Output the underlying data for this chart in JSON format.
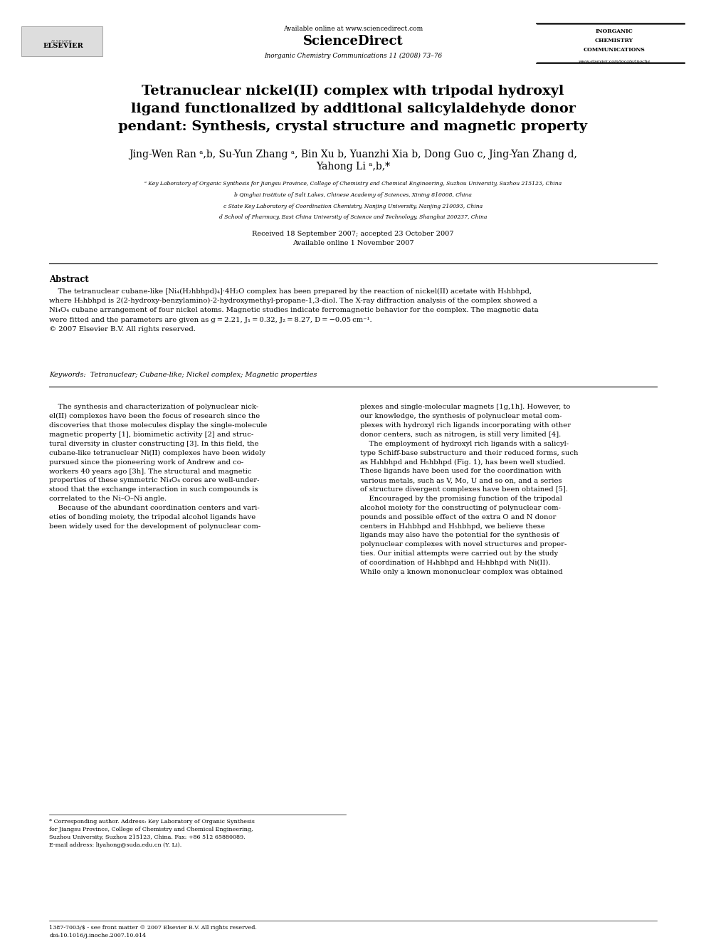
{
  "bg_color": "#ffffff",
  "page_width": 9.92,
  "page_height": 13.23,
  "header": {
    "available_online": "Available online at www.sciencedirect.com",
    "journal_name": "Inorganic Chemistry Communications 11 (2008) 73–76",
    "sciencedirect_text": "ScienceDirect",
    "journal_abbr_line1": "INORGANIC",
    "journal_abbr_line2": "CHEMISTRY",
    "journal_abbr_line3": "COMMUNICATIONS",
    "website": "www.elsevier.com/locate/inoche"
  },
  "title": "Tetranuclear nickel(II) complex with tripodal hydroxyl\nligand functionalized by additional salicylaldehyde donor\npendant: Synthesis, crystal structure and magnetic property",
  "authors": "Jing-Wen Ran ¹ᵇ, Su-Yun Zhang ¹, Bin Xu ᵇ, Yuanzhi Xia ᵇ, Dong Guo ᶜ, Jing-Yan Zhang ᵈ,\nYahong Li ¹ᵇ,*",
  "affiliations": [
    "ᵃ Key Laboratory of Organic Synthesis for Jiangsu Province, College of Chemistry and Chemical Engineering, Suzhou University, Suzhou 215123, China",
    "ᵇ Qinghai Institute of Salt Lakes, Chinese Academy of Sciences, Xining 810008, China",
    "ᶜ State Key Laboratory of Coordination Chemistry, Nanjing University, Nanjing 210093, China",
    "ᵈ School of Pharmacy, East China University of Science and Technology, Shanghai 200237, China"
  ],
  "received_dates": "Received 18 September 2007; accepted 23 October 2007\nAvailable online 1 November 2007",
  "abstract_title": "Abstract",
  "abstract_text": "The tetranuclear cubane-like [Ni₄(H₂hbhpd)₄]·4H₂O complex has been prepared by the reaction of nickel(II) acetate with H₅hbhpd,\nwhere H₅hbhpd is 2(2-hydroxy-benzylamino)-2-hydroxymethyl-propane-1,3-diol. The X-ray diffraction analysis of the complex showed a\nNi₄O₄ cubane arrangement of four nickel atoms. Magnetic studies indicate ferromagnetic behavior for the complex. The magnetic data\nwere fitted and the parameters are given as g = 2.21, J₁ = 0.32, J₂ = 8.27, D = −0.05 cm⁻¹.\n© 2007 Elsevier B.V. All rights reserved.",
  "keywords": "Keywords:  Tetranuclear; Cubane-like; Nickel complex; Magnetic properties",
  "body_col1": "The synthesis and characterization of polynuclear nick-\nel(II) complexes have been the focus of research since the\ndiscoveries that those molecules display the single-molecule\nmagnetic property [1], biomimetic activity [2] and struc-\ntural diversity in cluster constructing [3]. In this field, the\ncubane-like tetranuclear Ni(II) complexes have been widely\npursued since the pioneering work of Andrew and co-\nworkers 40 years ago [3h]. The structural and magnetic\nproperties of these symmetric Ni₄O₄ cores are well-under-\nstood that the exchange interaction in such compounds is\ncorrelated to the Ni–O–Ni angle.\n    Because of the abundant coordination centers and vari-\neties of bonding moiety, the tripodal alcohol ligands have\nbeen widely used for the development of polynuclear com-",
  "body_col2": "plexes and single-molecular magnets [1g,1h]. However, to\nour knowledge, the synthesis of polynuclear metal com-\nplexes with hydroxyl rich ligands incorporating with other\ndonor centers, such as nitrogen, is still very limited [4].\n    The employment of hydroxyl rich ligands with a salicyl-\ntype Schiff-base substructure and their reduced forms, such\nas H₄hbhpd and H₅hbhpd (Fig. 1), has been well studied.\nThese ligands have been used for the coordination with\nvarious metals, such as V, Mo, U and so on, and a series\nof structure divergent complexes have been obtained [5].\n    Encouraged by the promising function of the tripodal\nalcohol moiety for the constructing of polynuclear com-\npounds and possible effect of the extra O and N donor\ncenters in H₄hbhpd and H₅hbhpd, we believe these\nligands may also have the potential for the synthesis of\npolynuclear complexes with novel structures and proper-\nties. Our initial attempts were carried out by the study\nof coordination of H₄hbhpd and H₅hbhpd with Ni(II).\nWhile only a known mononuclear complex was obtained",
  "footnote_star": "* Corresponding author. Address: Key Laboratory of Organic Synthesis\nfor Jiangsu Province, College of Chemistry and Chemical Engineering,\nSuzhou University, Suzhou 215123, China. Fax: +86 512 65880089.\nE-mail address: liyahong@suda.edu.cn (Y. Li).",
  "footnote_bottom": "1387-7003/$ - see front matter © 2007 Elsevier B.V. All rights reserved.\ndoi:10.1016/j.inoche.2007.10.014"
}
